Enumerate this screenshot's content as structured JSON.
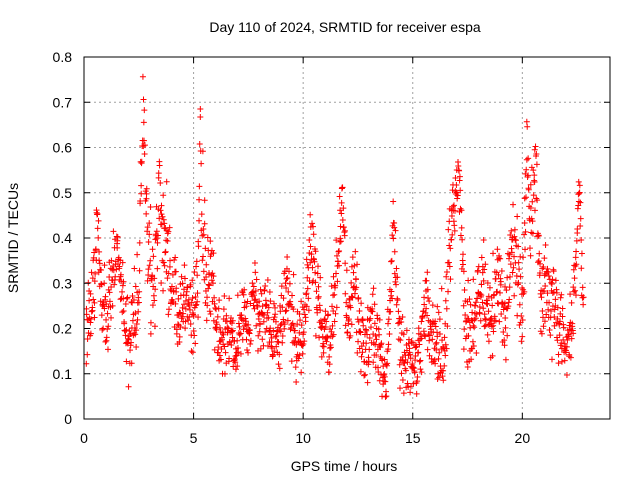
{
  "chart_data": {
    "type": "scatter",
    "title": "Day 110 of 2024, SRMTID for receiver espa",
    "xlabel": "GPS time / hours",
    "ylabel": "SRMTID / TECUs",
    "xlim": [
      0,
      24
    ],
    "ylim": [
      0,
      0.8
    ],
    "x_ticks": [
      0,
      5,
      10,
      15,
      20
    ],
    "x_tick_labels": [
      "0",
      "5",
      "10",
      "15",
      "20"
    ],
    "y_ticks": [
      0,
      0.1,
      0.2,
      0.3,
      0.4,
      0.5,
      0.6,
      0.7,
      0.8
    ],
    "y_tick_labels": [
      "0",
      "0.1",
      "0.2",
      "0.3",
      "0.4",
      "0.5",
      "0.6",
      "0.7",
      "0.8"
    ],
    "grid": true,
    "marker": "+",
    "marker_color": "#ff0000",
    "series": [
      {
        "name": "SRMTID",
        "x": [
          0.1,
          0.3,
          0.5,
          0.6,
          0.8,
          1.0,
          1.2,
          1.5,
          1.8,
          2.0,
          2.2,
          2.5,
          2.7,
          2.8,
          3.0,
          3.2,
          3.4,
          3.6,
          3.8,
          4.0,
          4.2,
          4.5,
          4.8,
          5.0,
          5.2,
          5.3,
          5.4,
          5.6,
          5.8,
          6.0,
          6.3,
          6.6,
          6.9,
          7.2,
          7.5,
          7.8,
          8.0,
          8.3,
          8.6,
          8.9,
          9.2,
          9.5,
          9.8,
          10.0,
          10.2,
          10.4,
          10.6,
          10.9,
          11.2,
          11.5,
          11.8,
          12.0,
          12.3,
          12.6,
          12.9,
          13.2,
          13.5,
          13.8,
          14.1,
          14.4,
          14.7,
          15.0,
          15.3,
          15.6,
          15.9,
          16.2,
          16.5,
          16.8,
          17.1,
          17.4,
          17.7,
          18.0,
          18.3,
          18.6,
          18.9,
          19.2,
          19.5,
          19.8,
          20.0,
          20.2,
          20.4,
          20.6,
          20.8,
          21.1,
          21.4,
          21.7,
          22.0,
          22.3,
          22.6,
          22.8
        ],
        "y": [
          0.18,
          0.25,
          0.3,
          0.46,
          0.28,
          0.22,
          0.27,
          0.4,
          0.24,
          0.18,
          0.22,
          0.3,
          0.68,
          0.52,
          0.35,
          0.3,
          0.44,
          0.4,
          0.38,
          0.27,
          0.22,
          0.26,
          0.25,
          0.22,
          0.3,
          0.62,
          0.47,
          0.3,
          0.35,
          0.2,
          0.18,
          0.2,
          0.15,
          0.22,
          0.19,
          0.33,
          0.2,
          0.25,
          0.18,
          0.2,
          0.28,
          0.22,
          0.16,
          0.2,
          0.3,
          0.42,
          0.25,
          0.2,
          0.16,
          0.28,
          0.52,
          0.22,
          0.3,
          0.18,
          0.15,
          0.22,
          0.14,
          0.1,
          0.4,
          0.18,
          0.12,
          0.12,
          0.15,
          0.27,
          0.17,
          0.15,
          0.22,
          0.46,
          0.53,
          0.2,
          0.18,
          0.3,
          0.26,
          0.2,
          0.33,
          0.22,
          0.38,
          0.35,
          0.2,
          0.6,
          0.4,
          0.55,
          0.32,
          0.28,
          0.25,
          0.2,
          0.15,
          0.22,
          0.5,
          0.27
        ],
        "y_spread": [
          0.05,
          0.06,
          0.07,
          0.06,
          0.06,
          0.07,
          0.06,
          0.05,
          0.06,
          0.07,
          0.07,
          0.08,
          0.06,
          0.08,
          0.1,
          0.09,
          0.08,
          0.08,
          0.08,
          0.07,
          0.07,
          0.06,
          0.06,
          0.07,
          0.08,
          0.05,
          0.09,
          0.09,
          0.08,
          0.07,
          0.06,
          0.06,
          0.05,
          0.06,
          0.06,
          0.06,
          0.07,
          0.06,
          0.07,
          0.06,
          0.06,
          0.06,
          0.06,
          0.07,
          0.07,
          0.06,
          0.07,
          0.06,
          0.06,
          0.06,
          0.05,
          0.07,
          0.06,
          0.07,
          0.05,
          0.06,
          0.06,
          0.05,
          0.06,
          0.06,
          0.05,
          0.05,
          0.05,
          0.06,
          0.06,
          0.06,
          0.07,
          0.06,
          0.06,
          0.07,
          0.07,
          0.07,
          0.07,
          0.08,
          0.07,
          0.07,
          0.07,
          0.08,
          0.08,
          0.06,
          0.08,
          0.07,
          0.08,
          0.07,
          0.07,
          0.07,
          0.06,
          0.06,
          0.06,
          0.06
        ]
      }
    ]
  }
}
